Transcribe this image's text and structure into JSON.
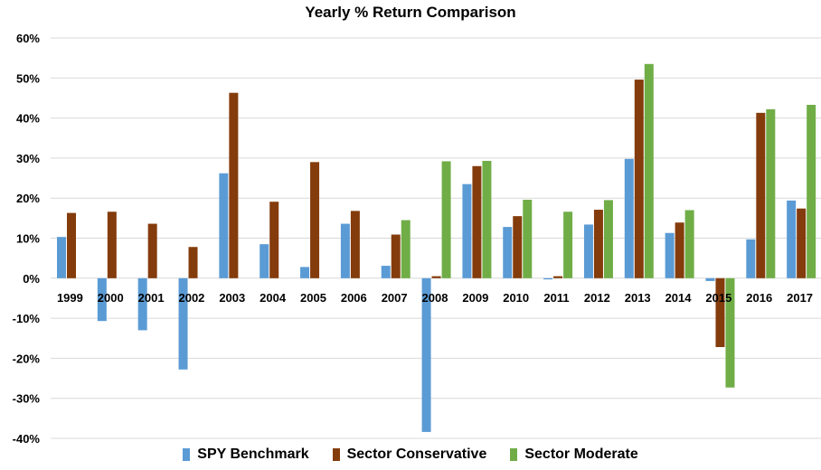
{
  "chart_data": {
    "type": "bar",
    "title": "Yearly % Return Comparison",
    "xlabel": "",
    "ylabel": "",
    "ylim": [
      -40,
      60
    ],
    "yticks": [
      "60%",
      "50%",
      "40%",
      "30%",
      "20%",
      "10%",
      "0%",
      "-10%",
      "-20%",
      "-30%",
      "-40%"
    ],
    "ytick_values": [
      60,
      50,
      40,
      30,
      20,
      10,
      0,
      -10,
      -20,
      -30,
      -40
    ],
    "grid": true,
    "legend_position": "bottom",
    "categories": [
      "1999",
      "2000",
      "2001",
      "2002",
      "2003",
      "2004",
      "2005",
      "2006",
      "2007",
      "2008",
      "2009",
      "2010",
      "2011",
      "2012",
      "2013",
      "2014",
      "2015",
      "2016",
      "2017"
    ],
    "series": [
      {
        "name": "SPY Benchmark",
        "color": "#5b9bd5",
        "values": [
          10.3,
          -10.7,
          -13.0,
          -22.8,
          26.2,
          8.5,
          2.8,
          13.6,
          3.1,
          -38.4,
          23.5,
          12.8,
          -0.3,
          13.4,
          29.8,
          11.3,
          -0.7,
          9.7,
          19.4
        ]
      },
      {
        "name": "Sector Conservative",
        "color": "#843c0c",
        "values": [
          16.3,
          16.6,
          13.6,
          7.8,
          46.3,
          19.1,
          29.0,
          16.8,
          10.9,
          0.5,
          28.0,
          15.5,
          0.5,
          17.1,
          49.6,
          13.9,
          -17.2,
          41.3,
          17.4
        ]
      },
      {
        "name": "Sector Moderate",
        "color": "#70ad47",
        "values": [
          null,
          null,
          null,
          null,
          null,
          null,
          null,
          null,
          14.5,
          29.2,
          29.3,
          19.6,
          16.6,
          19.5,
          53.5,
          17.0,
          -27.3,
          42.2,
          43.3
        ]
      }
    ]
  }
}
